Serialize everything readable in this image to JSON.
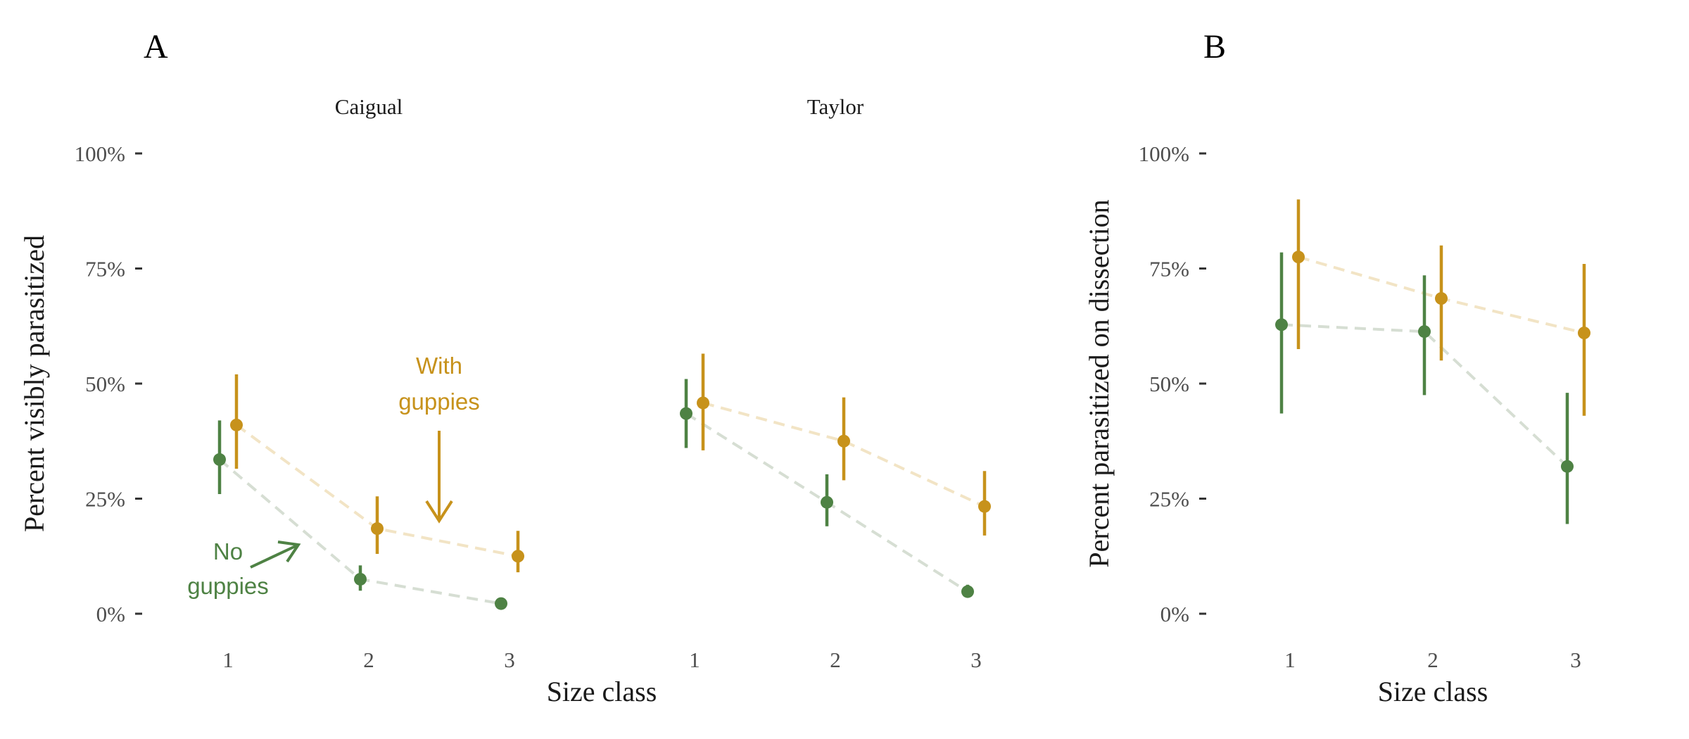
{
  "figure": {
    "panel_labels": [
      "A",
      "B"
    ],
    "colors": {
      "no_guppies": "#4e8244",
      "with_guppies": "#c7921b",
      "no_guppies_line": "#d6ded3",
      "with_guppies_line": "#f2e4c5",
      "tick_text": "#4d4d4d"
    }
  },
  "annotations": {
    "with_guppies_line1": "With",
    "with_guppies_line2": "guppies",
    "no_guppies_line1": "No",
    "no_guppies_line2": "guppies"
  },
  "chart_data": [
    {
      "type": "scatter",
      "panel": "A",
      "facet": "Caigual",
      "xlabel": "Size class",
      "ylabel": "Percent visibly parasitized",
      "x": [
        1,
        2,
        3
      ],
      "x_ticks": [
        "1",
        "2",
        "3"
      ],
      "y_ticks": [
        "0%",
        "25%",
        "50%",
        "75%",
        "100%"
      ],
      "ylim": [
        0,
        100
      ],
      "grid": false,
      "series": [
        {
          "name": "No guppies",
          "values": [
            33.5,
            7.5,
            2.2
          ],
          "lower": [
            26,
            5,
            1.5
          ],
          "upper": [
            42,
            10.5,
            3
          ]
        },
        {
          "name": "With guppies",
          "values": [
            41,
            18.5,
            12.5
          ],
          "lower": [
            31.5,
            13,
            9
          ],
          "upper": [
            52,
            25.5,
            18
          ]
        }
      ]
    },
    {
      "type": "scatter",
      "panel": "A",
      "facet": "Taylor",
      "xlabel": "Size class",
      "ylabel": "Percent visibly parasitized",
      "x": [
        1,
        2,
        3
      ],
      "x_ticks": [
        "1",
        "2",
        "3"
      ],
      "ylim": [
        0,
        100
      ],
      "grid": false,
      "series": [
        {
          "name": "No guppies",
          "values": [
            43.5,
            24.2,
            4.8
          ],
          "lower": [
            36,
            19,
            3.5
          ],
          "upper": [
            51,
            30.3,
            6.3
          ]
        },
        {
          "name": "With guppies",
          "values": [
            45.8,
            37.5,
            23.3
          ],
          "lower": [
            35.5,
            29,
            17
          ],
          "upper": [
            56.5,
            47,
            31
          ]
        }
      ]
    },
    {
      "type": "scatter",
      "panel": "B",
      "facet": "",
      "xlabel": "Size class",
      "ylabel": "Percent parasitized on dissection",
      "x": [
        1,
        2,
        3
      ],
      "x_ticks": [
        "1",
        "2",
        "3"
      ],
      "y_ticks": [
        "0%",
        "25%",
        "50%",
        "75%",
        "100%"
      ],
      "ylim": [
        0,
        100
      ],
      "grid": false,
      "series": [
        {
          "name": "No guppies",
          "values": [
            62.8,
            61.3,
            32
          ],
          "lower": [
            43.5,
            47.5,
            19.5
          ],
          "upper": [
            78.5,
            73.5,
            48
          ]
        },
        {
          "name": "With guppies",
          "values": [
            77.5,
            68.5,
            61
          ],
          "lower": [
            57.5,
            55,
            43
          ],
          "upper": [
            90,
            80,
            76
          ]
        }
      ]
    }
  ]
}
